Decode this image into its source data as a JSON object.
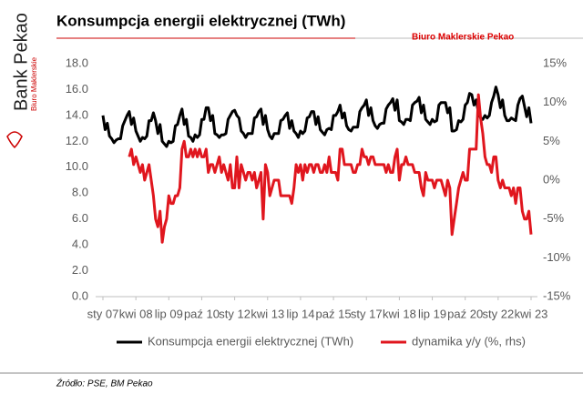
{
  "page": {
    "brand": "Bank Pekao",
    "brand_sub": "Biuro Maklerskie",
    "header_note": "Biuro Maklerskie Pekao",
    "source": "Źródło: PSE, BM Pekao"
  },
  "chart_data": {
    "type": "line",
    "title": "Konsumpcja energii elektrycznej (TWh)",
    "categories": [
      "sty 07",
      null,
      null,
      null,
      null,
      null,
      null,
      null,
      null,
      null,
      null,
      null,
      null,
      null,
      null,
      "kwi 08",
      null,
      null,
      null,
      null,
      null,
      null,
      null,
      null,
      null,
      null,
      null,
      null,
      null,
      null,
      "lip 09",
      null,
      null,
      null,
      null,
      null,
      null,
      null,
      null,
      null,
      null,
      null,
      null,
      null,
      null,
      "paź 10",
      null,
      null,
      null,
      null,
      null,
      null,
      null,
      null,
      null,
      null,
      null,
      null,
      null,
      null,
      "sty 12",
      null,
      null,
      null,
      null,
      null,
      null,
      null,
      null,
      null,
      null,
      null,
      null,
      null,
      null,
      "kwi 13",
      null,
      null,
      null,
      null,
      null,
      null,
      null,
      null,
      null,
      null,
      null,
      null,
      null,
      null,
      "lip 14",
      null,
      null,
      null,
      null,
      null,
      null,
      null,
      null,
      null,
      null,
      null,
      null,
      null,
      null,
      "paź 15",
      null,
      null,
      null,
      null,
      null,
      null,
      null,
      null,
      null,
      null,
      null,
      null,
      null,
      null,
      "sty 17",
      null,
      null,
      null,
      null,
      null,
      null,
      null,
      null,
      null,
      null,
      null,
      null,
      null,
      null,
      "kwi 18",
      null,
      null,
      null,
      null,
      null,
      null,
      null,
      null,
      null,
      null,
      null,
      null,
      null,
      null,
      "lip 19",
      null,
      null,
      null,
      null,
      null,
      null,
      null,
      null,
      null,
      null,
      null,
      null,
      null,
      null,
      "paź 20",
      null,
      null,
      null,
      null,
      null,
      null,
      null,
      null,
      null,
      null,
      null,
      null,
      null,
      null,
      "sty 22",
      null,
      null,
      null,
      null,
      null,
      null,
      null,
      null,
      null,
      null,
      null,
      null,
      null,
      null,
      "kwi 23"
    ],
    "series": [
      {
        "name": "Konsumpcja energii elektrycznej (TWh)",
        "color": "#000000",
        "values": [
          14.0,
          12.9,
          13.4,
          12.4,
          12.2,
          11.9,
          12.1,
          12.2,
          12.2,
          13.2,
          13.6,
          14.0,
          14.3,
          13.3,
          13.8,
          12.8,
          12.4,
          12.0,
          12.3,
          12.2,
          12.4,
          13.6,
          13.6,
          14.2,
          13.6,
          12.6,
          13.3,
          12.0,
          11.8,
          11.6,
          12.0,
          11.9,
          12.0,
          13.2,
          13.3,
          14.0,
          14.5,
          13.3,
          13.7,
          12.4,
          12.3,
          12.0,
          12.5,
          12.3,
          12.5,
          13.7,
          13.7,
          14.6,
          14.6,
          13.6,
          14.0,
          12.6,
          12.5,
          12.3,
          12.5,
          12.5,
          12.6,
          13.7,
          14.0,
          14.3,
          14.4,
          14.0,
          13.8,
          12.8,
          12.6,
          12.3,
          12.6,
          12.6,
          12.6,
          13.8,
          13.9,
          14.3,
          14.5,
          13.3,
          14.0,
          12.9,
          12.4,
          12.2,
          12.6,
          12.6,
          12.6,
          13.6,
          13.7,
          14.0,
          14.2,
          13.0,
          13.6,
          12.8,
          12.6,
          12.3,
          12.8,
          12.6,
          12.8,
          13.8,
          13.9,
          14.3,
          14.3,
          13.3,
          13.9,
          12.9,
          12.7,
          12.5,
          12.9,
          13.0,
          12.9,
          14.0,
          14.0,
          14.3,
          14.8,
          13.8,
          14.2,
          13.2,
          12.9,
          12.8,
          13.1,
          13.1,
          13.1,
          14.3,
          14.6,
          14.8,
          15.2,
          14.0,
          14.6,
          13.6,
          13.2,
          13.0,
          13.3,
          13.4,
          13.4,
          14.5,
          14.8,
          15.0,
          15.3,
          14.4,
          15.2,
          13.6,
          13.5,
          13.3,
          13.7,
          13.7,
          13.6,
          14.8,
          15.0,
          15.1,
          15.4,
          14.2,
          14.8,
          13.7,
          13.5,
          13.3,
          13.7,
          13.5,
          13.6,
          14.8,
          15.0,
          15.0,
          15.0,
          14.2,
          14.6,
          12.8,
          12.8,
          12.9,
          13.6,
          13.5,
          13.7,
          14.8,
          15.0,
          15.7,
          15.6,
          14.8,
          15.2,
          14.2,
          13.8,
          13.7,
          14.0,
          13.8,
          14.0,
          15.0,
          15.5,
          16.2,
          15.6,
          14.6,
          15.2,
          14.0,
          13.6,
          13.6,
          13.8,
          13.7,
          13.6,
          14.8,
          15.3,
          15.5,
          14.7,
          13.9,
          14.6,
          13.4
        ]
      },
      {
        "name": "dynamika y/y (%, rhs)",
        "color": "#e0161e",
        "axis": "y2",
        "values": [
          null,
          null,
          null,
          null,
          null,
          null,
          null,
          null,
          null,
          null,
          null,
          null,
          3,
          4,
          2,
          3,
          2,
          1,
          2,
          0,
          1,
          2,
          0,
          -2,
          -5,
          -6,
          -4,
          -8,
          -6,
          -5,
          -2,
          -3,
          -3,
          -2,
          -2,
          -1,
          4,
          5,
          3,
          3,
          4,
          3,
          4,
          3,
          4,
          3,
          3,
          4,
          1,
          2,
          2,
          1,
          2,
          3,
          1,
          2,
          1,
          0,
          2,
          -1,
          -1,
          3,
          -1,
          2,
          1,
          0,
          1,
          1,
          0,
          1,
          -1,
          0,
          1,
          -5,
          2,
          1,
          -2,
          -1,
          0,
          0,
          0,
          -2,
          -2,
          -2,
          -2,
          -2,
          -3,
          -1,
          2,
          1,
          2,
          0,
          2,
          1,
          2,
          2,
          1,
          2,
          2,
          1,
          1,
          2,
          1,
          3,
          1,
          1,
          1,
          0,
          4,
          4,
          2,
          2,
          2,
          2,
          1,
          1,
          2,
          2,
          4,
          3,
          3,
          2,
          3,
          3,
          2,
          2,
          2,
          2,
          2,
          1,
          2,
          1,
          1,
          3,
          4,
          0,
          2,
          2,
          3,
          2,
          2,
          2,
          1,
          1,
          1,
          -1,
          -2,
          1,
          0,
          0,
          0,
          -1,
          0,
          0,
          0,
          -1,
          -2,
          0,
          -1,
          -7,
          -5,
          -3,
          -1,
          0,
          1,
          0,
          0,
          4,
          4,
          4,
          4,
          11,
          8,
          6,
          3,
          2,
          2,
          1,
          3,
          3,
          0,
          -1,
          0,
          -1,
          -1,
          -1,
          -2,
          -1,
          -3,
          -1,
          -1,
          -4,
          -5,
          -5,
          -4,
          -7
        ]
      }
    ],
    "ylim": [
      0,
      18
    ],
    "yticks": [
      {
        "value": 0,
        "label": "0.0"
      },
      {
        "value": 2,
        "label": "2.0"
      },
      {
        "value": 4,
        "label": "4.0"
      },
      {
        "value": 6,
        "label": "6.0"
      },
      {
        "value": 8,
        "label": "8.0"
      },
      {
        "value": 10,
        "label": "10.0"
      },
      {
        "value": 12,
        "label": "12.0"
      },
      {
        "value": 14,
        "label": "14.0"
      },
      {
        "value": 16,
        "label": "16.0"
      },
      {
        "value": 18,
        "label": "18.0"
      }
    ],
    "y2lim": [
      -15,
      15
    ],
    "y2ticks": [
      {
        "value": -15,
        "label": "-15%"
      },
      {
        "value": -10,
        "label": "-10%"
      },
      {
        "value": -5,
        "label": "-5%"
      },
      {
        "value": 0,
        "label": "0%"
      },
      {
        "value": 5,
        "label": "5%"
      },
      {
        "value": 10,
        "label": "10%"
      },
      {
        "value": 15,
        "label": "15%"
      }
    ],
    "legend": "bottom"
  }
}
